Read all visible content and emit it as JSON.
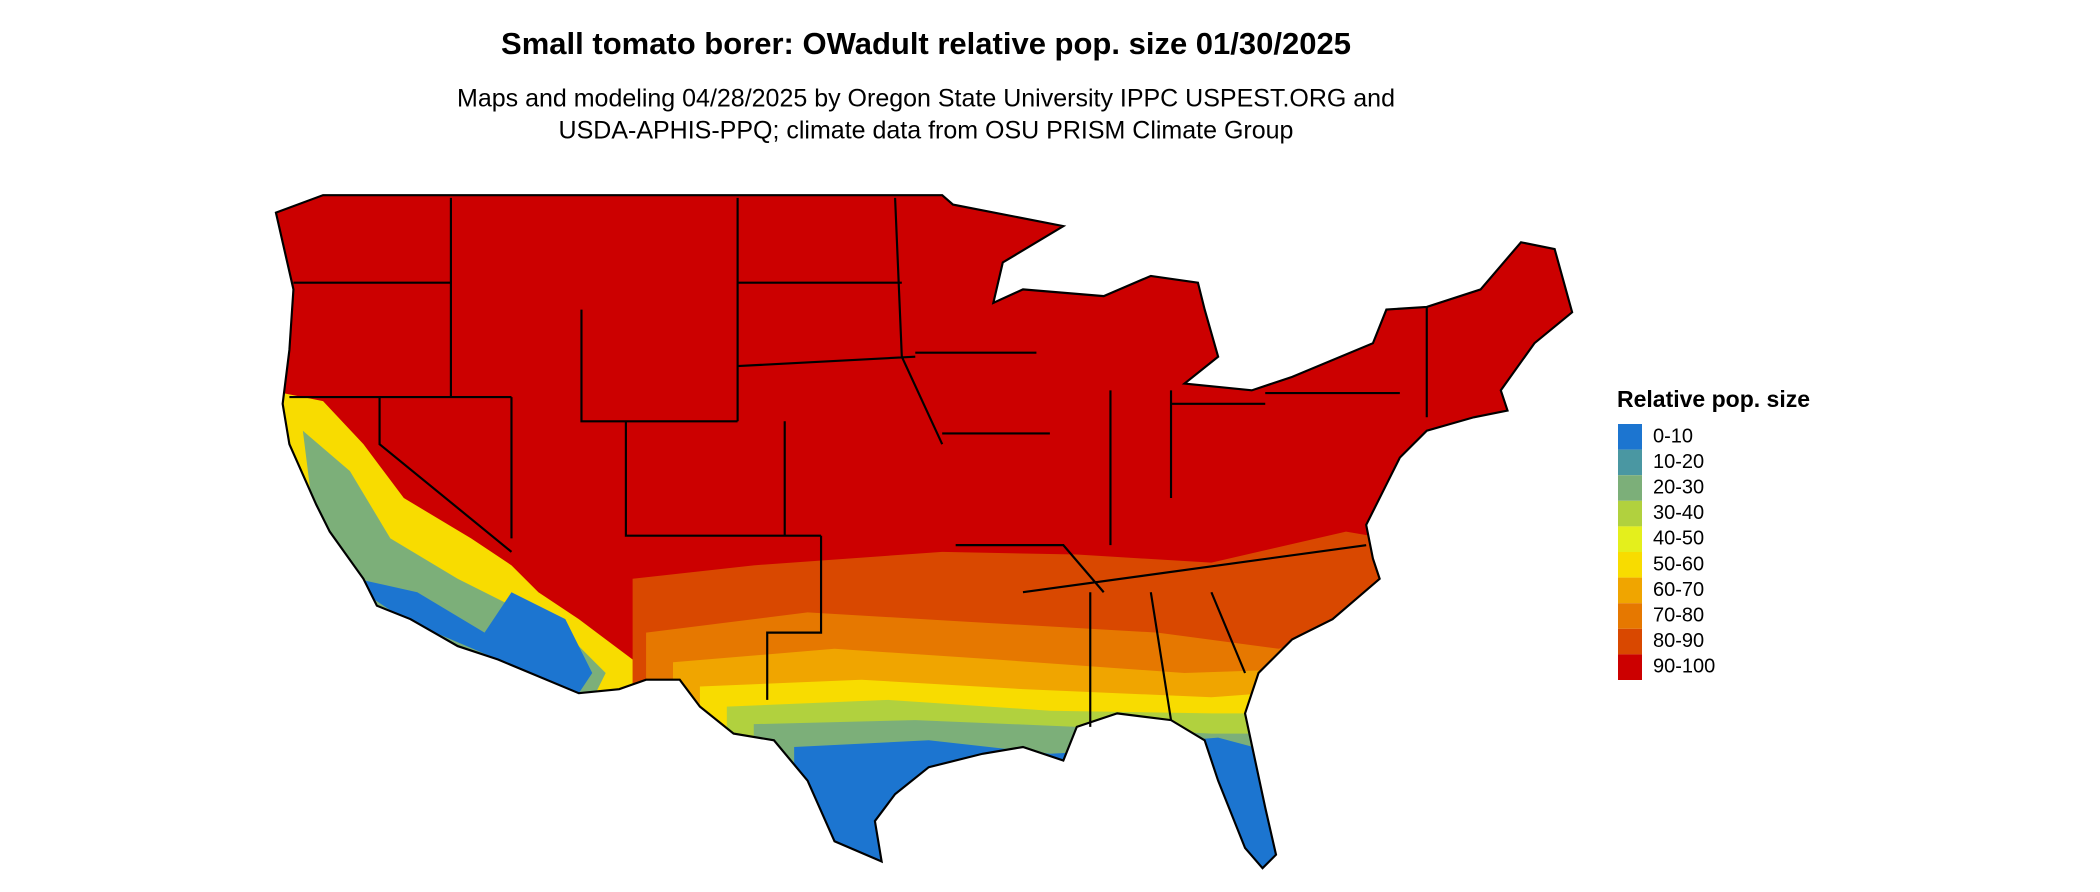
{
  "title": "Small tomato borer: OWadult relative pop. size 01/30/2025",
  "subtitle": [
    "Maps and modeling 04/28/2025 by Oregon State University IPPC USPEST.ORG and",
    "USDA-APHIS-PPQ; climate data from OSU PRISM Climate Group"
  ],
  "legend": {
    "title": "Relative pop. size",
    "items": [
      {
        "label": "0-10",
        "color": "#1c75d0"
      },
      {
        "label": "10-20",
        "color": "#4a97a2"
      },
      {
        "label": "20-30",
        "color": "#7caf79"
      },
      {
        "label": "30-40",
        "color": "#b1d13e"
      },
      {
        "label": "40-50",
        "color": "#e4ef1c"
      },
      {
        "label": "50-60",
        "color": "#f8dc00"
      },
      {
        "label": "60-70",
        "color": "#f0a500"
      },
      {
        "label": "70-80",
        "color": "#e67800"
      },
      {
        "label": "80-90",
        "color": "#d94800"
      },
      {
        "label": "90-100",
        "color": "#cc0000"
      }
    ]
  }
}
